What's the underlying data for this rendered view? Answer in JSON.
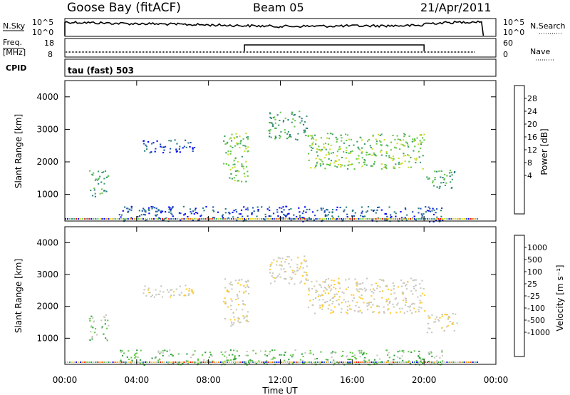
{
  "header": {
    "station": "Goose Bay (fitACF)",
    "beam": "Beam 05",
    "date": "21/Apr/2011"
  },
  "nsky_panel": {
    "label": "N.Sky",
    "right_label": "N.Search",
    "left_ticks": [
      "10^5",
      "10^0"
    ],
    "right_ticks": [
      "10^5",
      "10^0"
    ]
  },
  "freq_panel": {
    "label_line1": "Freq.",
    "label_line2": "[MHz]",
    "right_label": "Nave",
    "left_ticks": [
      "18",
      "8"
    ],
    "right_ticks": [
      "60",
      "0"
    ]
  },
  "cpid": {
    "label": "CPID",
    "mode": "tau (fast) 503"
  },
  "x_axis": {
    "label": "Time UT",
    "ticks": [
      "00:00",
      "04:00",
      "08:00",
      "12:00",
      "16:00",
      "20:00",
      "00:00"
    ]
  },
  "chart_data": [
    {
      "type": "heatmap",
      "name": "power",
      "ylabel": "Slant Range [km]",
      "yticks": [
        "4000",
        "3000",
        "2000",
        "1000"
      ],
      "colorbar_label": "Power [dB]",
      "colorbar_ticks": [
        "28",
        "24",
        "20",
        "16",
        "12",
        "8",
        "4"
      ],
      "colors": [
        "#0000ff",
        "#1e4fb4",
        "#2c7d7d",
        "#3fa06a",
        "#66c84a",
        "#c8dd2b",
        "#ffd700",
        "#ff9900",
        "#ff5a00",
        "#ff0000"
      ],
      "x_range_hours": [
        0,
        24
      ],
      "y_range_km": [
        180,
        4500
      ],
      "regions": [
        {
          "t": [
            1.3,
            2.4
          ],
          "r": [
            950,
            1750
          ],
          "level": 3
        },
        {
          "t": [
            4.2,
            7.2
          ],
          "r": [
            2300,
            2700
          ],
          "level": 1
        },
        {
          "t": [
            8.8,
            10.2
          ],
          "r": [
            1400,
            2900
          ],
          "level": 4
        },
        {
          "t": [
            11.3,
            13.5
          ],
          "r": [
            2700,
            3600
          ],
          "level": 3
        },
        {
          "t": [
            13.5,
            20.0
          ],
          "r": [
            1800,
            2900
          ],
          "level": 4
        },
        {
          "t": [
            20.1,
            21.8
          ],
          "r": [
            1200,
            1800
          ],
          "level": 3
        },
        {
          "t": [
            3.0,
            21.0
          ],
          "r": [
            180,
            650
          ],
          "level": 1
        }
      ]
    },
    {
      "type": "heatmap",
      "name": "velocity",
      "ylabel": "Slant Range [km]",
      "yticks": [
        "4000",
        "3000",
        "2000",
        "1000"
      ],
      "colorbar_label": "Velocity [m s⁻¹]",
      "colorbar_ticks": [
        "1000",
        "500",
        "100",
        "25",
        "-25",
        "-100",
        "-500",
        "-1000"
      ],
      "colors": [
        "#ff0000",
        "#ff5a00",
        "#ff9900",
        "#ffcc33",
        "#c8c8c0",
        "#c8c8c0",
        "#66c84a",
        "#2ea043",
        "#1e7a9a",
        "#0000ff"
      ],
      "x_range_hours": [
        0,
        24
      ],
      "y_range_km": [
        180,
        4500
      ],
      "regions": [
        {
          "t": [
            1.3,
            2.4
          ],
          "r": [
            950,
            1750
          ],
          "level": 6
        },
        {
          "t": [
            4.2,
            7.2
          ],
          "r": [
            2300,
            2700
          ],
          "level": 4
        },
        {
          "t": [
            8.8,
            10.2
          ],
          "r": [
            1400,
            2900
          ],
          "level": 4
        },
        {
          "t": [
            11.3,
            13.5
          ],
          "r": [
            2700,
            3600
          ],
          "level": 4
        },
        {
          "t": [
            13.5,
            20.0
          ],
          "r": [
            1800,
            2900
          ],
          "level": 4
        },
        {
          "t": [
            20.1,
            21.8
          ],
          "r": [
            1200,
            1800
          ],
          "level": 4
        },
        {
          "t": [
            3.0,
            21.0
          ],
          "r": [
            180,
            650
          ],
          "level": 6
        }
      ]
    }
  ]
}
